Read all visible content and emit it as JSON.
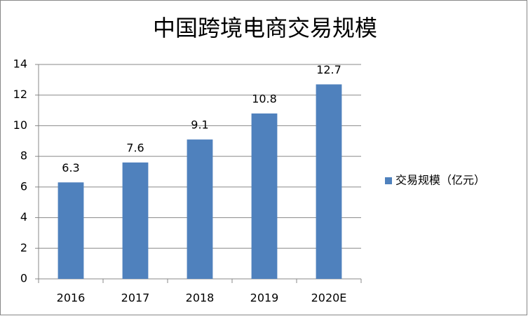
{
  "chart_data": {
    "type": "bar",
    "title": "中国跨境电商交易规模",
    "categories": [
      "2016",
      "2017",
      "2018",
      "2019",
      "2020E"
    ],
    "series": [
      {
        "name": "交易规模（亿元）",
        "color": "#4f81bd",
        "values": [
          6.3,
          7.6,
          9.1,
          10.8,
          12.7
        ]
      }
    ],
    "ylim": [
      0,
      14
    ],
    "yticks": [
      0,
      2,
      4,
      6,
      8,
      10,
      12,
      14
    ],
    "grid": true,
    "legend": "right"
  }
}
